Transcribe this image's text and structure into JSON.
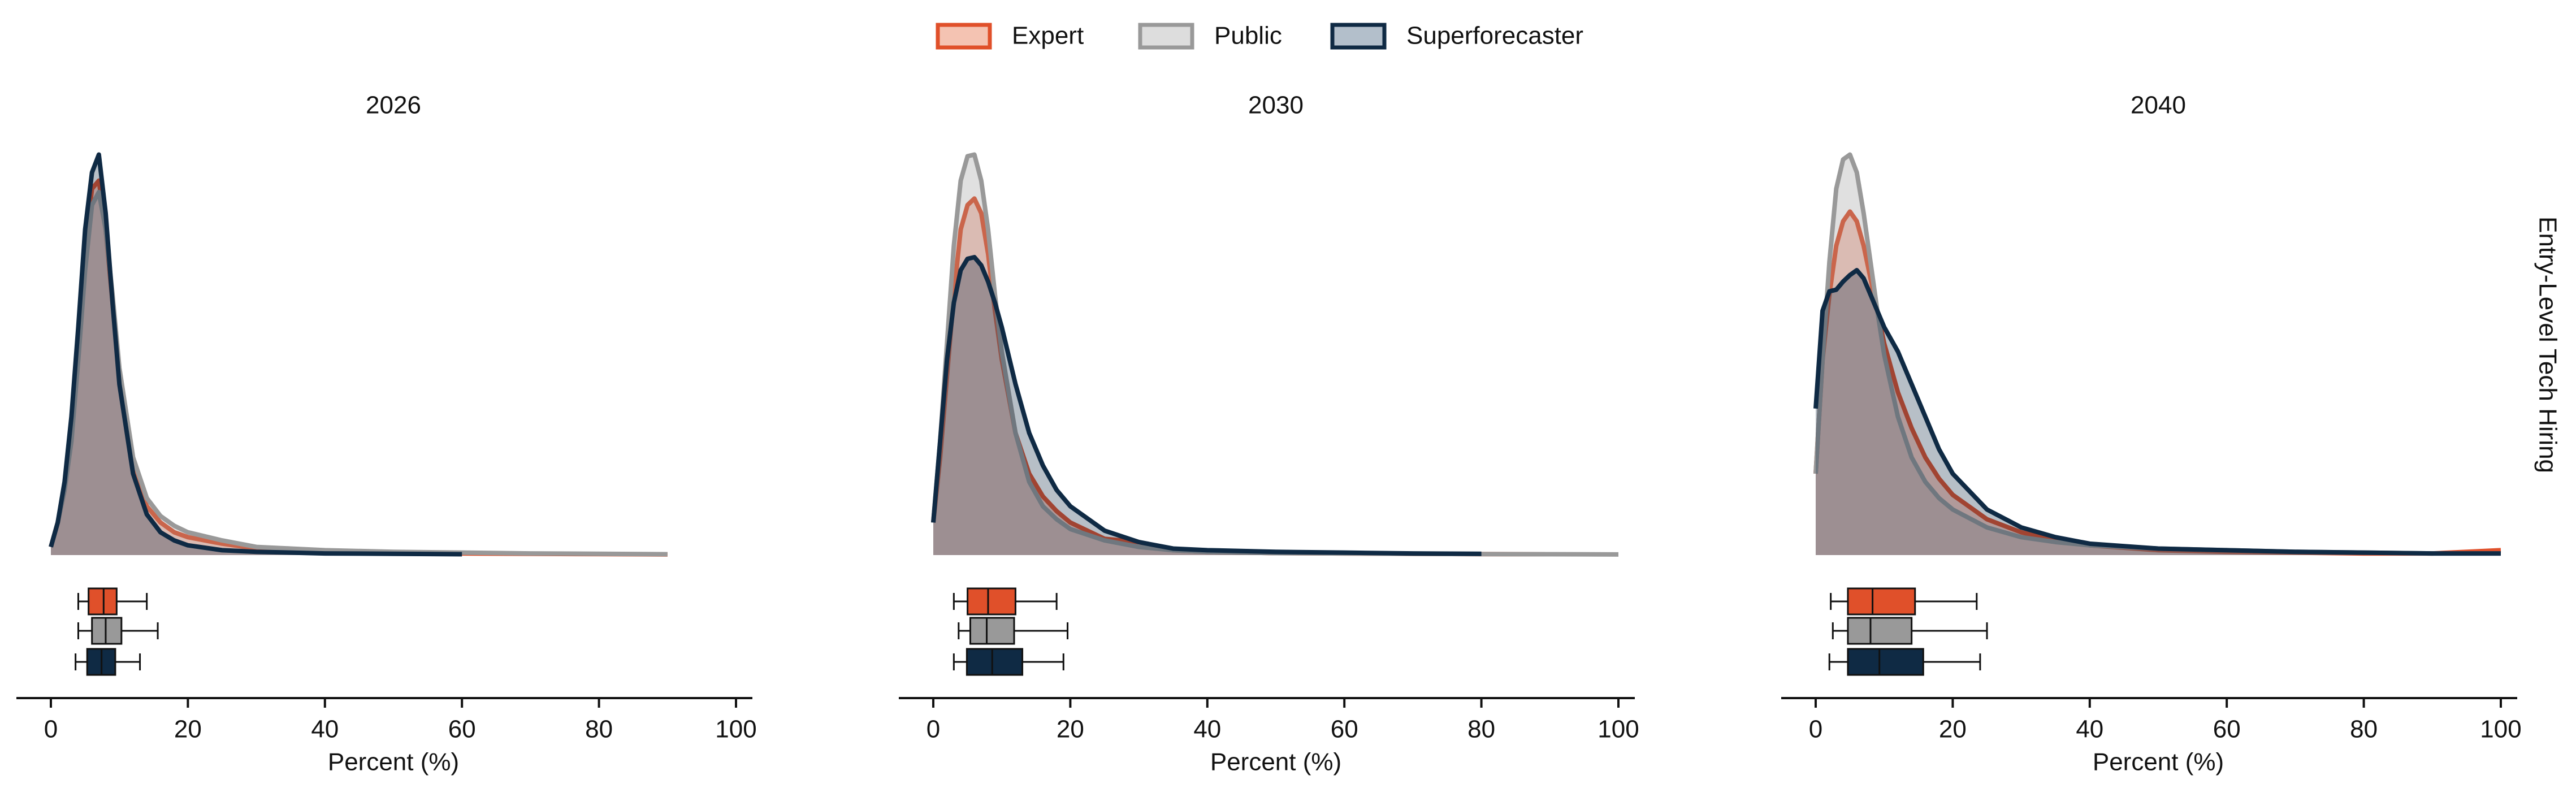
{
  "facet_label": "Entry-Level Tech Hiring",
  "chart_data": [
    {
      "type": "density",
      "title": "2026",
      "xlabel": "Percent (%)",
      "xlim": [
        0,
        100
      ],
      "xticks": [
        0,
        20,
        40,
        60,
        80,
        100
      ],
      "ylim": [
        0,
        0.25
      ],
      "x": [
        0,
        1,
        2,
        3,
        4,
        5,
        6,
        7,
        8,
        9,
        10,
        12,
        14,
        16,
        18,
        20,
        25,
        30,
        35,
        40,
        50,
        60,
        70,
        80,
        90,
        100
      ],
      "series": [
        {
          "name": "Expert",
          "color": "#e0502a",
          "fill": "#f4c3b2",
          "box": [
            4,
            5.5,
            7.7,
            9.6,
            14
          ],
          "values": [
            0.005,
            0.02,
            0.04,
            0.075,
            0.13,
            0.19,
            0.225,
            0.23,
            0.2,
            0.155,
            0.11,
            0.055,
            0.03,
            0.02,
            0.014,
            0.011,
            0.007,
            0.004,
            0.003,
            0.002,
            0.0015,
            0.001,
            0.0008,
            0.0006,
            0.0004,
            null
          ]
        },
        {
          "name": "Public",
          "color": "#999999",
          "fill": "#dddddd",
          "box": [
            4,
            6,
            8,
            10.3,
            15.6
          ],
          "values": [
            0.005,
            0.02,
            0.04,
            0.07,
            0.12,
            0.175,
            0.215,
            0.223,
            0.2,
            0.16,
            0.115,
            0.06,
            0.035,
            0.024,
            0.018,
            0.014,
            0.009,
            0.005,
            0.004,
            0.003,
            0.002,
            0.0015,
            0.001,
            0.0008,
            0.0005,
            null
          ]
        },
        {
          "name": "Superforecaster",
          "color": "#0f2a44",
          "fill": "#b3bfcb",
          "box": [
            3.6,
            5.3,
            7.4,
            9.4,
            13
          ],
          "values": [
            0.005,
            0.02,
            0.045,
            0.085,
            0.14,
            0.2,
            0.235,
            0.246,
            0.21,
            0.155,
            0.105,
            0.05,
            0.025,
            0.014,
            0.009,
            0.006,
            0.003,
            0.002,
            0.0015,
            0.001,
            0.0008,
            0.0005,
            null,
            null,
            null,
            null
          ]
        }
      ]
    },
    {
      "type": "density",
      "title": "2030",
      "xlabel": "Percent (%)",
      "xlim": [
        0,
        100
      ],
      "xticks": [
        0,
        20,
        40,
        60,
        80,
        100
      ],
      "ylim": [
        0,
        0.25
      ],
      "x": [
        0,
        1,
        2,
        3,
        4,
        5,
        6,
        7,
        8,
        9,
        10,
        12,
        14,
        16,
        18,
        20,
        25,
        30,
        35,
        40,
        50,
        60,
        70,
        80,
        90,
        100
      ],
      "series": [
        {
          "name": "Expert",
          "color": "#e0502a",
          "fill": "#f4c3b2",
          "box": [
            3,
            5,
            8,
            12,
            18
          ],
          "values": [
            0.02,
            0.06,
            0.11,
            0.16,
            0.2,
            0.215,
            0.219,
            0.21,
            0.185,
            0.15,
            0.12,
            0.075,
            0.05,
            0.036,
            0.027,
            0.02,
            0.01,
            0.008,
            0.003,
            0.002,
            0.0012,
            0.001,
            0.0008,
            0.0006,
            0.0005,
            null
          ]
        },
        {
          "name": "Public",
          "color": "#999999",
          "fill": "#dddddd",
          "box": [
            3.7,
            5.4,
            7.8,
            11.8,
            19.6
          ],
          "values": [
            0.02,
            0.07,
            0.13,
            0.19,
            0.23,
            0.245,
            0.246,
            0.23,
            0.2,
            0.16,
            0.125,
            0.075,
            0.045,
            0.03,
            0.022,
            0.016,
            0.009,
            0.005,
            0.003,
            0.002,
            0.0012,
            0.001,
            0.0008,
            0.0006,
            0.0005,
            0.0004
          ]
        },
        {
          "name": "Superforecaster",
          "color": "#0f2a44",
          "fill": "#b3bfcb",
          "box": [
            3,
            4.9,
            8.6,
            13,
            19
          ],
          "values": [
            0.02,
            0.07,
            0.12,
            0.155,
            0.175,
            0.182,
            0.183,
            0.178,
            0.168,
            0.155,
            0.14,
            0.105,
            0.075,
            0.055,
            0.04,
            0.03,
            0.015,
            0.008,
            0.004,
            0.003,
            0.002,
            0.0015,
            0.001,
            0.0008,
            null,
            null
          ]
        }
      ]
    },
    {
      "type": "density",
      "title": "2040",
      "xlabel": "Percent (%)",
      "xlim": [
        0,
        100
      ],
      "xticks": [
        0,
        20,
        40,
        60,
        80,
        100
      ],
      "ylim": [
        0,
        0.25
      ],
      "x": [
        0,
        1,
        2,
        3,
        4,
        5,
        6,
        7,
        8,
        9,
        10,
        12,
        14,
        16,
        18,
        20,
        25,
        30,
        35,
        40,
        50,
        60,
        70,
        80,
        90,
        100
      ],
      "series": [
        {
          "name": "Expert",
          "color": "#e0502a",
          "fill": "#f4c3b2",
          "box": [
            2.2,
            4.7,
            8.3,
            14.5,
            23.5
          ],
          "values": [
            0.05,
            0.12,
            0.16,
            0.19,
            0.205,
            0.211,
            0.205,
            0.19,
            0.17,
            0.15,
            0.13,
            0.1,
            0.078,
            0.06,
            0.047,
            0.037,
            0.022,
            0.014,
            0.009,
            0.006,
            0.003,
            0.002,
            0.0015,
            0.001,
            0.001,
            0.003
          ]
        },
        {
          "name": "Public",
          "color": "#999999",
          "fill": "#dddddd",
          "box": [
            2.5,
            4.7,
            8,
            14,
            25
          ],
          "values": [
            0.05,
            0.12,
            0.18,
            0.225,
            0.243,
            0.246,
            0.235,
            0.21,
            0.18,
            0.15,
            0.123,
            0.085,
            0.06,
            0.045,
            0.035,
            0.028,
            0.017,
            0.011,
            0.008,
            0.006,
            0.004,
            0.003,
            0.002,
            0.0015,
            0.001,
            0.001
          ]
        },
        {
          "name": "Superforecaster",
          "color": "#0f2a44",
          "fill": "#b3bfcb",
          "box": [
            2,
            4.7,
            9.3,
            15.7,
            24
          ],
          "values": [
            0.09,
            0.15,
            0.162,
            0.163,
            0.168,
            0.172,
            0.175,
            0.17,
            0.16,
            0.15,
            0.14,
            0.125,
            0.105,
            0.085,
            0.065,
            0.05,
            0.028,
            0.017,
            0.011,
            0.007,
            0.004,
            0.003,
            0.002,
            0.0015,
            0.001,
            0.001
          ]
        }
      ]
    }
  ]
}
